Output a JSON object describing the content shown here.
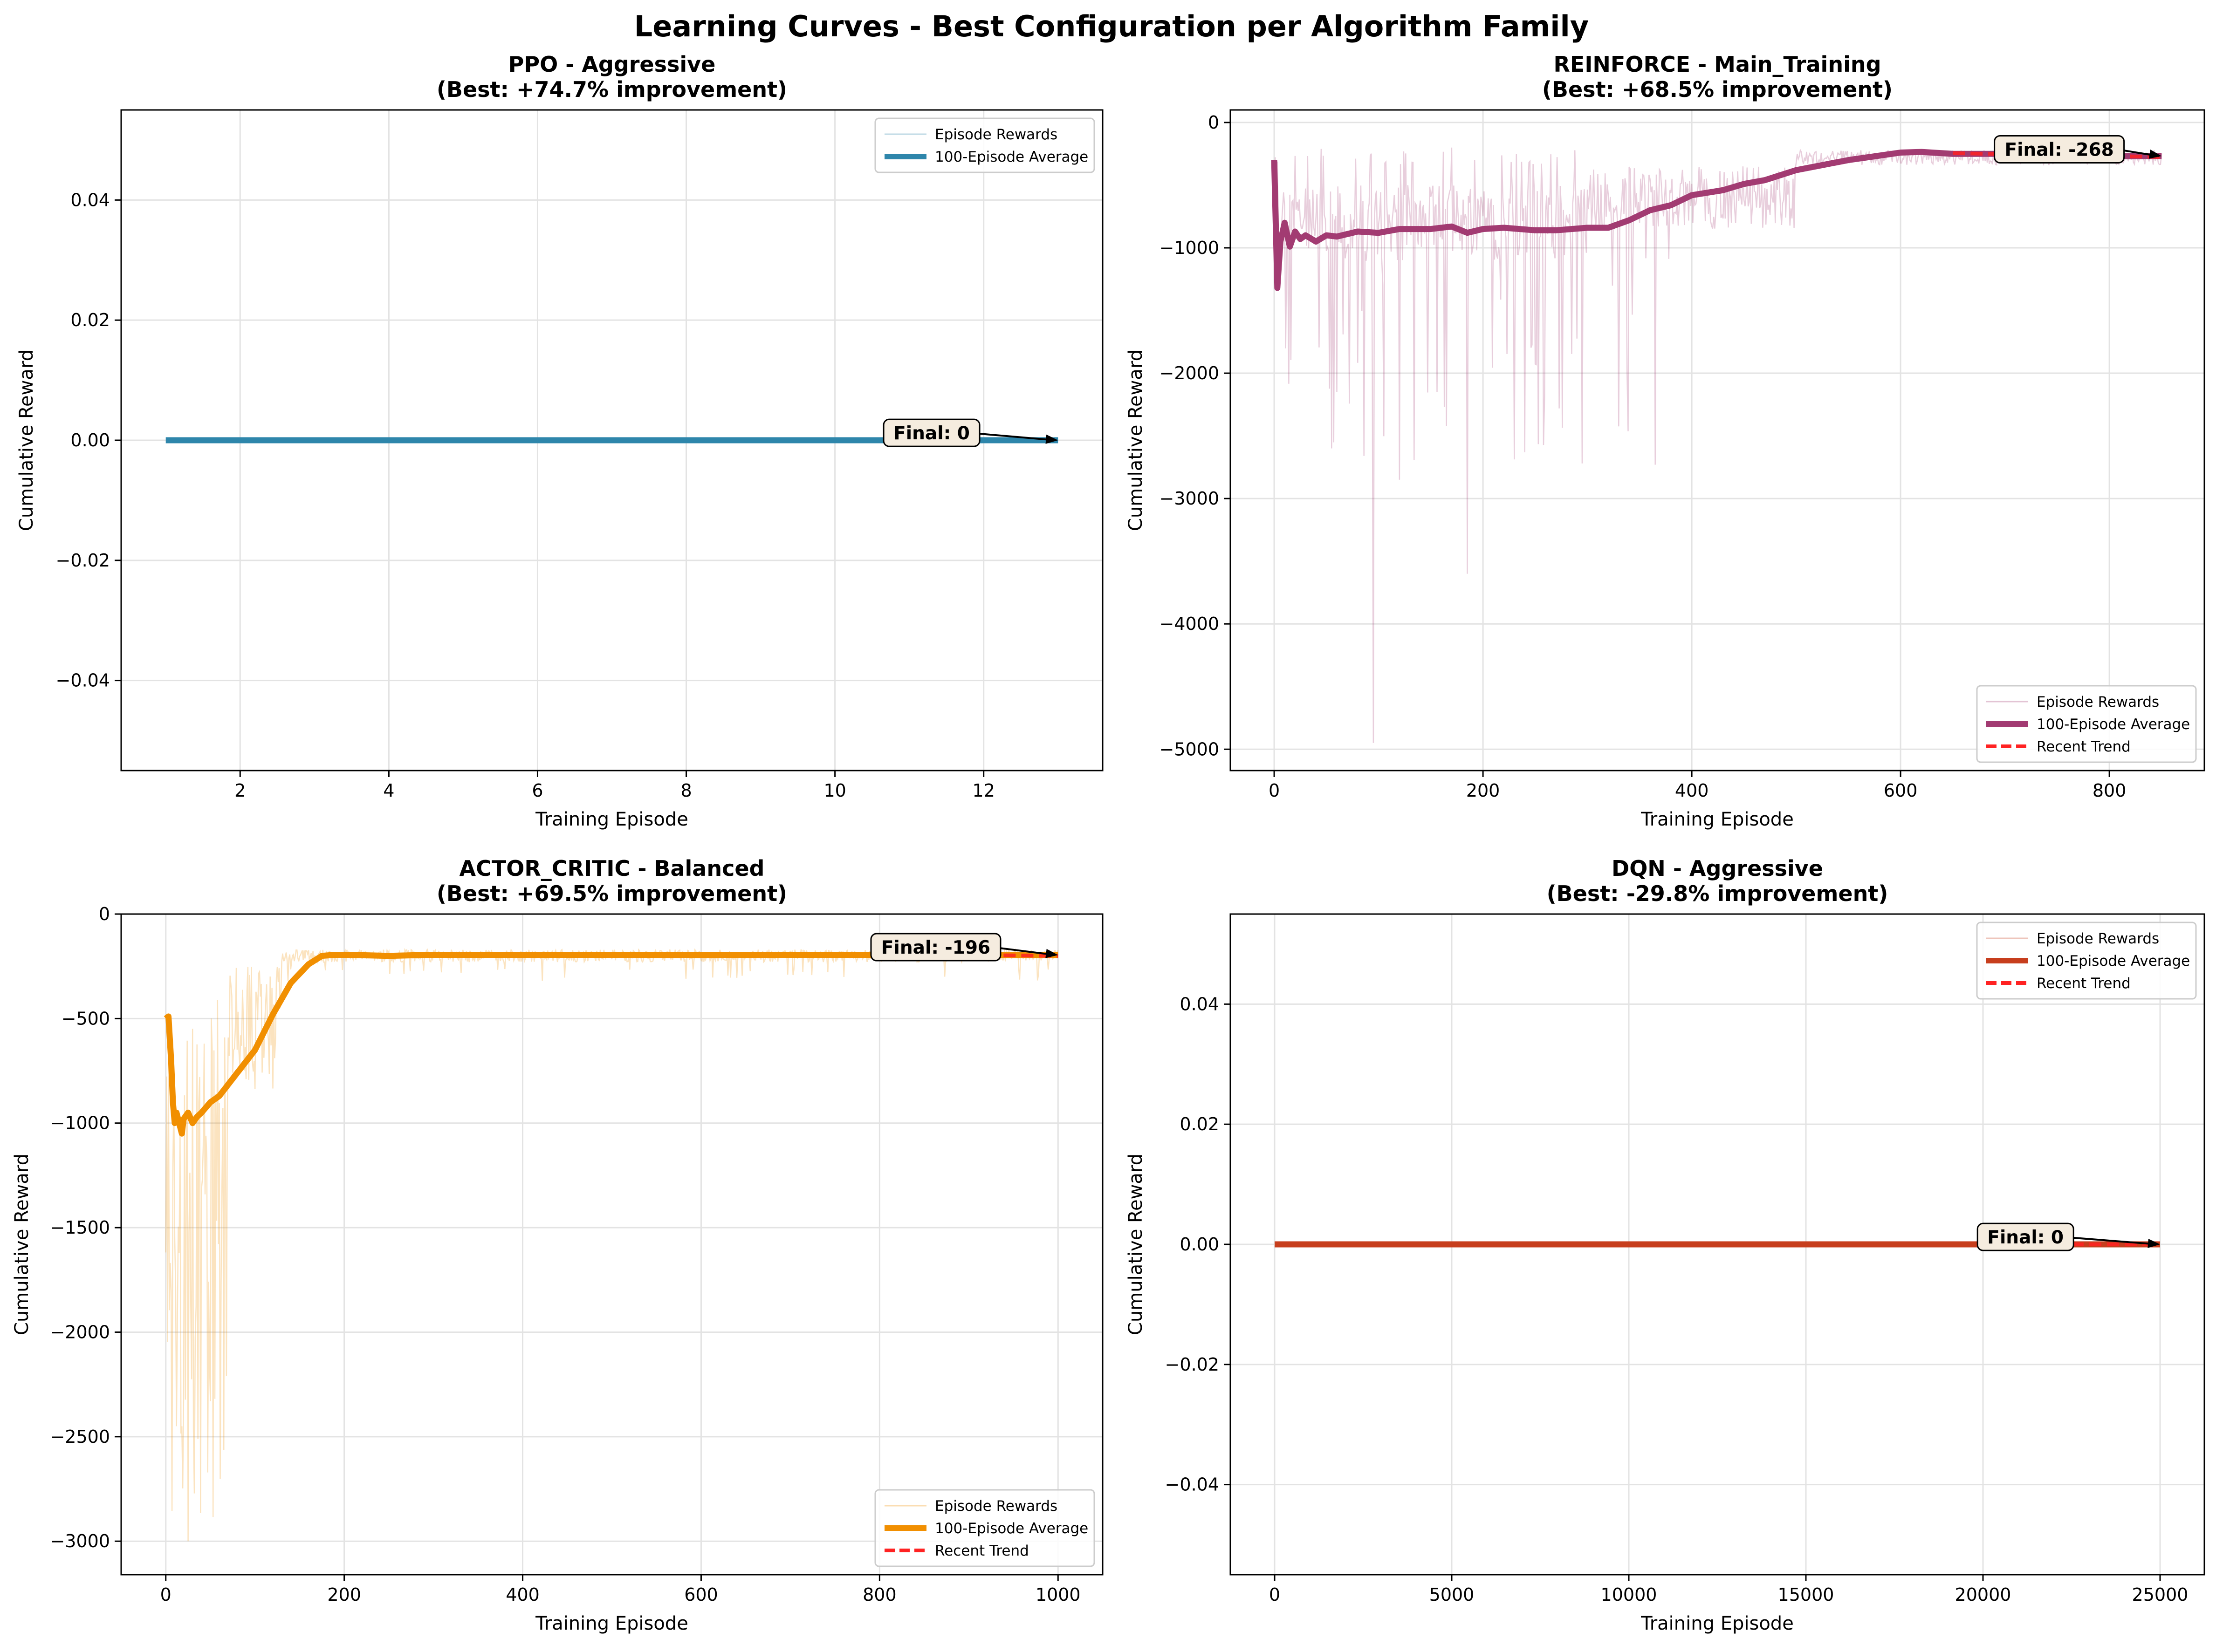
{
  "figure": {
    "suptitle": "Learning Curves - Best Configuration per Algorithm Family"
  },
  "chart_data": [
    {
      "type": "line",
      "title": "PPO - Aggressive",
      "subtitle": "(Best: +74.7% improvement)",
      "xlabel": "Training Episode",
      "ylabel": "Cumulative Reward",
      "xlim": [
        0.4,
        13.6
      ],
      "ylim": [
        -0.055,
        0.055
      ],
      "xticks": [
        2,
        4,
        6,
        8,
        10,
        12
      ],
      "xtick_labels": [
        "2",
        "4",
        "6",
        "8",
        "10",
        "12"
      ],
      "yticks": [
        -0.04,
        -0.02,
        0.0,
        0.02,
        0.04
      ],
      "ytick_labels": [
        "−0.04",
        "−0.02",
        "0.00",
        "0.02",
        "0.04"
      ],
      "grid": true,
      "legend": {
        "position": "upper right",
        "entries": [
          "Episode Rewards",
          "100-Episode Average"
        ]
      },
      "colors": {
        "main": "#2E86AB",
        "trend": "#FF2222"
      },
      "series": [
        {
          "name": "Episode Rewards",
          "style": "raw",
          "x": [
            1,
            13
          ],
          "y": [
            0,
            0
          ]
        },
        {
          "name": "100-Episode Average",
          "style": "avg",
          "x": [
            1,
            13
          ],
          "y": [
            0,
            0
          ]
        }
      ],
      "annotation": {
        "text": "Final: 0",
        "text_at": [
          11.3,
          0.001
        ],
        "arrow_to": [
          13,
          0
        ]
      }
    },
    {
      "type": "line",
      "title": "REINFORCE - Main_Training",
      "subtitle": "(Best: +68.5% improvement)",
      "xlabel": "Training Episode",
      "ylabel": "Cumulative Reward",
      "xlim": [
        -42,
        891
      ],
      "ylim": [
        -5170,
        100
      ],
      "xticks": [
        0,
        200,
        400,
        600,
        800
      ],
      "xtick_labels": [
        "0",
        "200",
        "400",
        "600",
        "800"
      ],
      "yticks": [
        0,
        -1000,
        -2000,
        -3000,
        -4000,
        -5000
      ],
      "ytick_labels": [
        "0",
        "−1000",
        "−2000",
        "−3000",
        "−4000",
        "−5000"
      ],
      "grid": true,
      "legend": {
        "position": "lower right",
        "entries": [
          "Episode Rewards",
          "100-Episode Average",
          "Recent Trend"
        ]
      },
      "colors": {
        "main": "#A23B72",
        "trend": "#FF2222"
      },
      "series": [
        {
          "name": "Episode Rewards",
          "style": "raw",
          "generate": "reinforce_raw",
          "x_range": [
            0,
            850
          ]
        },
        {
          "name": "100-Episode Average",
          "style": "avg",
          "x": [
            0,
            3,
            6,
            10,
            15,
            20,
            25,
            30,
            40,
            50,
            60,
            80,
            100,
            120,
            150,
            170,
            185,
            200,
            220,
            250,
            270,
            300,
            320,
            340,
            360,
            380,
            400,
            430,
            450,
            470,
            500,
            550,
            600,
            620,
            650,
            700,
            750,
            800,
            850
          ],
          "y": [
            -300,
            -1320,
            -950,
            -800,
            -990,
            -870,
            -930,
            -900,
            -950,
            -900,
            -910,
            -870,
            -880,
            -850,
            -850,
            -830,
            -880,
            -850,
            -840,
            -860,
            -860,
            -840,
            -840,
            -780,
            -700,
            -660,
            -580,
            -540,
            -490,
            -460,
            -380,
            -300,
            -240,
            -235,
            -250,
            -250,
            -265,
            -270,
            -268
          ]
        },
        {
          "name": "Recent Trend",
          "style": "trend",
          "x": [
            650,
            850
          ],
          "y": [
            -245,
            -275
          ]
        }
      ],
      "annotation": {
        "text": "Final: -268",
        "text_at": [
          752,
          -225
        ],
        "arrow_to": [
          850,
          -268
        ]
      }
    },
    {
      "type": "line",
      "title": "ACTOR_CRITIC - Balanced",
      "subtitle": "(Best: +69.5% improvement)",
      "xlabel": "Training Episode",
      "ylabel": "Cumulative Reward",
      "xlim": [
        -50,
        1050
      ],
      "ylim": [
        -3160,
        0
      ],
      "xticks": [
        0,
        200,
        400,
        600,
        800,
        1000
      ],
      "xtick_labels": [
        "0",
        "200",
        "400",
        "600",
        "800",
        "1000"
      ],
      "yticks": [
        0,
        -500,
        -1000,
        -1500,
        -2000,
        -2500,
        -3000
      ],
      "ytick_labels": [
        "0",
        "−500",
        "−1000",
        "−1500",
        "−2000",
        "−2500",
        "−3000"
      ],
      "grid": true,
      "legend": {
        "position": "lower right",
        "entries": [
          "Episode Rewards",
          "100-Episode Average",
          "Recent Trend"
        ]
      },
      "colors": {
        "main": "#F18F01",
        "trend": "#FF2222"
      },
      "series": [
        {
          "name": "Episode Rewards",
          "style": "raw",
          "generate": "ac_raw",
          "x_range": [
            0,
            1000
          ]
        },
        {
          "name": "100-Episode Average",
          "style": "avg",
          "x": [
            0,
            3,
            6,
            8,
            10,
            12,
            15,
            18,
            20,
            25,
            30,
            35,
            40,
            50,
            60,
            80,
            100,
            120,
            140,
            160,
            175,
            190,
            200,
            250,
            300,
            400,
            500,
            600,
            700,
            800,
            900,
            1000
          ],
          "y": [
            -500,
            -490,
            -700,
            -900,
            -1000,
            -950,
            -1000,
            -1050,
            -980,
            -950,
            -1000,
            -970,
            -950,
            -900,
            -870,
            -760,
            -650,
            -480,
            -330,
            -240,
            -200,
            -195,
            -195,
            -200,
            -195,
            -195,
            -195,
            -196,
            -195,
            -195,
            -196,
            -196
          ]
        },
        {
          "name": "Recent Trend",
          "style": "trend",
          "x": [
            800,
            1000
          ],
          "y": [
            -192,
            -200
          ]
        }
      ],
      "annotation": {
        "text": "Final: -196",
        "text_at": [
          863,
          -165
        ],
        "arrow_to": [
          1000,
          -196
        ]
      }
    },
    {
      "type": "line",
      "title": "DQN - Aggressive",
      "subtitle": "(Best: -29.8% improvement)",
      "xlabel": "Training Episode",
      "ylabel": "Cumulative Reward",
      "xlim": [
        -1250,
        26250
      ],
      "ylim": [
        -0.055,
        0.055
      ],
      "xticks": [
        0,
        5000,
        10000,
        15000,
        20000,
        25000
      ],
      "xtick_labels": [
        "0",
        "5000",
        "10000",
        "15000",
        "20000",
        "25000"
      ],
      "yticks": [
        -0.04,
        -0.02,
        0.0,
        0.02,
        0.04
      ],
      "ytick_labels": [
        "−0.04",
        "−0.02",
        "0.00",
        "0.02",
        "0.04"
      ],
      "grid": true,
      "legend": {
        "position": "upper right",
        "entries": [
          "Episode Rewards",
          "100-Episode Average",
          "Recent Trend"
        ]
      },
      "colors": {
        "main": "#C73E1D",
        "trend": "#FF2222"
      },
      "series": [
        {
          "name": "Episode Rewards",
          "style": "raw",
          "x": [
            0,
            25000
          ],
          "y": [
            0,
            0
          ]
        },
        {
          "name": "100-Episode Average",
          "style": "avg",
          "x": [
            0,
            25000
          ],
          "y": [
            0,
            0
          ]
        },
        {
          "name": "Recent Trend",
          "style": "trend",
          "x": [
            20000,
            25000
          ],
          "y": [
            0,
            0
          ]
        }
      ],
      "annotation": {
        "text": "Final: 0",
        "text_at": [
          21200,
          0.001
        ],
        "arrow_to": [
          25000,
          0
        ]
      }
    }
  ]
}
